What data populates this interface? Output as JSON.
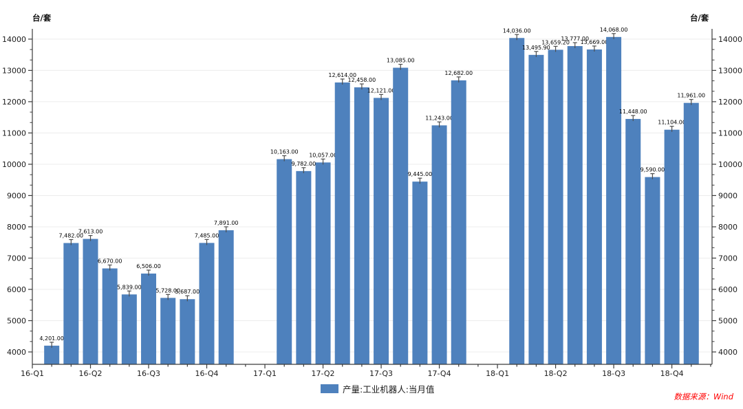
{
  "axis_units": {
    "left": "台/套",
    "right": "台/套"
  },
  "legend": {
    "label": "产量:工业机器人:当月值",
    "color": "#4E81BD"
  },
  "source": {
    "text": "数据来源：Wind",
    "color": "#ff0000"
  },
  "colors": {
    "bar": "#4E81BD",
    "spine": "#3a3a3a",
    "grid": "#ececec",
    "errorbar": "#4d4d4d",
    "tick_text": "#1a1a1a"
  },
  "chart_data": {
    "type": "bar",
    "title": "",
    "ylabel": "台/套",
    "legend_position": "bottom-center",
    "grid": "horizontal",
    "ylim": [
      3600,
      14330
    ],
    "y_ticks": [
      4000,
      5000,
      6000,
      7000,
      8000,
      9000,
      10000,
      11000,
      12000,
      13000,
      14000
    ],
    "x_tick_labels": [
      "16-Q1",
      "16-Q2",
      "16-Q3",
      "16-Q4",
      "17-Q1",
      "17-Q2",
      "17-Q3",
      "17-Q4",
      "18-Q1",
      "18-Q2",
      "18-Q3",
      "18-Q4"
    ],
    "slots_total": 36,
    "slots_per_quarter": 3,
    "series": [
      {
        "name": "产量:工业机器人:当月值",
        "color": "#4E81BD",
        "points": [
          {
            "slot": 1,
            "value": 4201,
            "label": "4,201.00"
          },
          {
            "slot": 2,
            "value": 7482,
            "label": "7,482.00"
          },
          {
            "slot": 3,
            "value": 7613,
            "label": "7,613.00"
          },
          {
            "slot": 4,
            "value": 6670,
            "label": "6,670.00"
          },
          {
            "slot": 5,
            "value": 5839,
            "label": "5,839.00"
          },
          {
            "slot": 6,
            "value": 6506,
            "label": "6,506.00"
          },
          {
            "slot": 7,
            "value": 5728,
            "label": "5,728.00"
          },
          {
            "slot": 8,
            "value": 5687,
            "label": "5,687.00"
          },
          {
            "slot": 9,
            "value": 7485,
            "label": "7,485.00"
          },
          {
            "slot": 10,
            "value": 7891,
            "label": "7,891.00"
          },
          {
            "slot": 13,
            "value": 10163,
            "label": "10,163.00"
          },
          {
            "slot": 14,
            "value": 9782,
            "label": "9,782.00"
          },
          {
            "slot": 15,
            "value": 10057,
            "label": "10,057.00"
          },
          {
            "slot": 16,
            "value": 12614,
            "label": "12,614.00"
          },
          {
            "slot": 17,
            "value": 12458,
            "label": "12,458.00"
          },
          {
            "slot": 18,
            "value": 12121,
            "label": "12,121.00"
          },
          {
            "slot": 19,
            "value": 13085,
            "label": "13,085.00"
          },
          {
            "slot": 20,
            "value": 9445,
            "label": "9,445.00"
          },
          {
            "slot": 21,
            "value": 11243,
            "label": "11,243.00"
          },
          {
            "slot": 22,
            "value": 12682,
            "label": "12,682.00"
          },
          {
            "slot": 25,
            "value": 14036,
            "label": "14,036.00"
          },
          {
            "slot": 26,
            "value": 13495.9,
            "label": "13,495.90"
          },
          {
            "slot": 27,
            "value": 13659.2,
            "label": "13,659.20"
          },
          {
            "slot": 28,
            "value": 13777,
            "label": "13,777.00"
          },
          {
            "slot": 29,
            "value": 13669,
            "label": "13,669.00"
          },
          {
            "slot": 30,
            "value": 14068,
            "label": "14,068.00"
          },
          {
            "slot": 31,
            "value": 11448,
            "label": "11,448.00"
          },
          {
            "slot": 32,
            "value": 9590,
            "label": "9,590.00"
          },
          {
            "slot": 33,
            "value": 11104,
            "label": "11,104.00"
          },
          {
            "slot": 34,
            "value": 11961,
            "label": "11,961.00"
          }
        ]
      }
    ]
  }
}
